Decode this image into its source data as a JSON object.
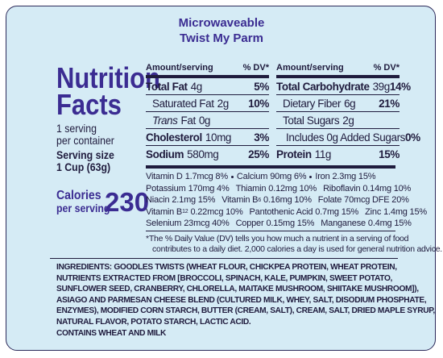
{
  "header": {
    "line1": "Microwaveable",
    "line2": "Twist My Parm"
  },
  "facts": {
    "title_line1": "Nutrition",
    "title_line2": "Facts",
    "servings_line1": "1 serving",
    "servings_line2": "per container",
    "serving_size_label": "Serving size",
    "serving_size_value": "1 Cup (63g)",
    "calories_label_line1": "Calories",
    "calories_label_line2": "per serving",
    "calories_value": 230,
    "columns": [
      {
        "amount_header": "Amount/serving",
        "dv_header": "% DV*",
        "rows": [
          {
            "name": "Total Fat",
            "amount": "4g",
            "dv": "5%",
            "bold": true
          },
          {
            "name": "Saturated Fat",
            "amount": "2g",
            "dv": "10%",
            "indent": true
          },
          {
            "prefix": "Trans",
            "name": "Fat",
            "amount": "0g",
            "indent": true
          },
          {
            "name": "Cholesterol",
            "amount": "10mg",
            "dv": "3%",
            "bold": true
          },
          {
            "name": "Sodium",
            "amount": "580mg",
            "dv": "25%",
            "bold": true
          }
        ]
      },
      {
        "amount_header": "Amount/serving",
        "dv_header": "% DV*",
        "rows": [
          {
            "name": "Total Carbohydrate",
            "amount": "39g",
            "dv": "14%",
            "bold": true
          },
          {
            "name": "Dietary Fiber",
            "amount": "6g",
            "dv": "21%",
            "indent": true
          },
          {
            "name": "Total Sugars",
            "amount": "2g",
            "indent": true
          },
          {
            "name": "Includes 0g Added Sugars",
            "dv": "0%",
            "indent": true,
            "indent2": true
          },
          {
            "name": "Protein",
            "amount": "11g",
            "dv": "15%",
            "bold": true
          }
        ]
      }
    ],
    "micronutrients": [
      [
        {
          "name": "Vitamin D",
          "amount": "1.7mcg 8%"
        },
        {
          "name": "Calcium",
          "amount": "90mg 6%"
        },
        {
          "name": "Iron",
          "amount": "2.3mg 15%"
        }
      ],
      [
        {
          "name": "Potassium",
          "amount": "170mg 4%"
        },
        {
          "name": "Thiamin",
          "amount": "0.12mg 10%"
        },
        {
          "name": "Riboflavin",
          "amount": "0.14mg 10%"
        }
      ],
      [
        {
          "name": "Niacin",
          "amount": "2.1mg 15%"
        },
        {
          "name": "Vitamin B",
          "sub": "6",
          "amount": "0.16mg 10%"
        },
        {
          "name": "Folate",
          "amount": "70mcg DFE 20%"
        }
      ],
      [
        {
          "name": "Vitamin B",
          "sub": "12",
          "amount": "0.22mcg 10%"
        },
        {
          "name": "Pantothenic Acid",
          "amount": "0.7mg 15%"
        },
        {
          "name": "Zinc",
          "amount": "1.4mg 15%"
        }
      ],
      [
        {
          "name": "Selenium",
          "amount": "23mcg 40%"
        },
        {
          "name": "Copper",
          "amount": "0.15mg 15%"
        },
        {
          "name": "Manganese",
          "amount": "0.4mg 15%"
        }
      ]
    ],
    "footnote_line1": "*The % Daily Value (DV) tells you how much a nutrient in a serving of food",
    "footnote_line2": "contributes to a daily diet. 2,000 calories a day is used for general nutrition advice."
  },
  "ingredients": {
    "label": "INGREDIENTS:",
    "text": "GOODLES TWISTS (WHEAT FLOUR, CHICKPEA PROTEIN, WHEAT PROTEIN, NUTRIENTS EXTRACTED FROM [BROCCOLI, SPINACH, KALE, PUMPKIN, SWEET POTATO, SUNFLOWER SEED, CRANBERRY, CHLORELLA, MAITAKE MUSHROOM, SHIITAKE MUSHROOM]), ASIAGO AND PARMESAN CHEESE BLEND (CULTURED MILK, WHEY, SALT, DISODIUM PHOSPHATE, ENZYMES), MODIFIED CORN STARCH, BUTTER (CREAM, SALT), CREAM, SALT, DRIED MAPLE SYRUP, NATURAL FLAVOR, POTATO STARCH, LACTIC ACID.",
    "contains": "CONTAINS WHEAT AND MILK"
  }
}
